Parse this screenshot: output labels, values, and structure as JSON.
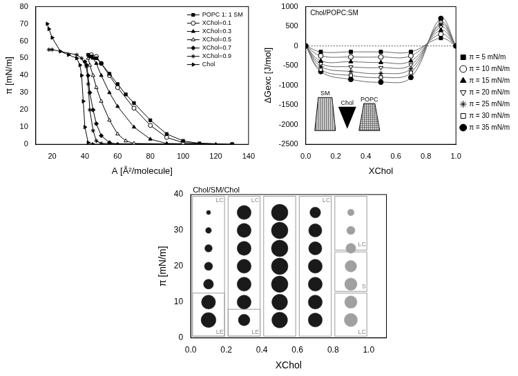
{
  "chart_data": [
    {
      "type": "line",
      "xlabel": "A [Å²/molecule]",
      "ylabel": "π [mN/m]",
      "xlim": [
        10,
        140
      ],
      "xticks": [
        20,
        40,
        60,
        80,
        100,
        120,
        140
      ],
      "ylim": [
        0,
        80
      ],
      "yticks": [
        0,
        10,
        20,
        30,
        40,
        50,
        60,
        70,
        80
      ],
      "legend": "upper right",
      "series": [
        {
          "name": "POPC 1: 1 SM",
          "color": "#000000",
          "marker": "square",
          "x": [
            130,
            110,
            100,
            90,
            80,
            70,
            65,
            60,
            55,
            50,
            47,
            44,
            42
          ],
          "values": [
            0,
            0.5,
            2,
            6,
            14,
            24,
            29,
            35,
            41,
            47,
            50,
            51,
            52
          ]
        },
        {
          "name": "XChol=0.1",
          "color": "#000000",
          "marker": "circle-open",
          "x": [
            130,
            100,
            90,
            80,
            70,
            60,
            55,
            50,
            47,
            44
          ],
          "values": [
            0,
            1,
            4,
            11,
            21,
            33,
            40,
            47,
            51,
            52
          ]
        },
        {
          "name": "XChol=0.3",
          "color": "#000000",
          "marker": "triangle",
          "x": [
            120,
            90,
            80,
            70,
            60,
            55,
            50,
            47,
            45,
            43
          ],
          "values": [
            0,
            0.5,
            3,
            10,
            22,
            30,
            40,
            47,
            50,
            51
          ]
        },
        {
          "name": "XChol=0.5",
          "color": "#000000",
          "marker": "triangle-open",
          "x": [
            110,
            70,
            65,
            60,
            55,
            50,
            47,
            45,
            43,
            42
          ],
          "values": [
            0,
            0.5,
            2,
            6,
            14,
            25,
            33,
            40,
            46,
            50
          ]
        },
        {
          "name": "XChol=0.7",
          "color": "#000000",
          "marker": "diamond",
          "x": [
            100,
            60,
            55,
            50,
            47,
            45,
            43,
            42,
            41,
            40
          ],
          "values": [
            0,
            0,
            1,
            5,
            12,
            20,
            30,
            40,
            46,
            48
          ]
        },
        {
          "name": "XChol=0.9",
          "color": "#000000",
          "marker": "star",
          "x": [
            100,
            50,
            47,
            45,
            43,
            42,
            41,
            38,
            35,
            20,
            18
          ],
          "values": [
            0,
            0.5,
            2,
            8,
            20,
            35,
            45,
            50,
            52,
            55,
            55
          ]
        },
        {
          "name": "Chol",
          "color": "#000000",
          "marker": "triangle-right",
          "x": [
            55,
            45,
            42,
            40,
            39,
            38,
            37,
            35,
            30,
            25,
            20,
            18,
            17
          ],
          "values": [
            0,
            0,
            1,
            10,
            25,
            40,
            46,
            50,
            52,
            54,
            62,
            67,
            70
          ]
        }
      ]
    },
    {
      "type": "line",
      "xlabel": "XChol",
      "ylabel": "ΔGexc [J/mol]",
      "xlim": [
        0,
        1
      ],
      "xticks": [
        {
          "value": 0,
          "label": "0.0"
        },
        0.2,
        0.4,
        0.6,
        0.8,
        {
          "value": 1,
          "label": "1.0"
        }
      ],
      "ylim": [
        -2500,
        1000
      ],
      "yticks": [
        -2500,
        -2000,
        -1500,
        -1000,
        -500,
        0,
        500,
        1000
      ],
      "legend": "right",
      "annotations": [
        {
          "text": "Chol/POPC:SM",
          "x": 0.03,
          "y": 830
        }
      ],
      "inset_labels": [
        "SM",
        "Chol",
        "POPC"
      ],
      "x": [
        0,
        0.1,
        0.3,
        0.5,
        0.7,
        0.9,
        1
      ],
      "series": [
        {
          "name": "π = 5 mN/m",
          "color": "#000000",
          "marker": "square",
          "values": [
            0,
            -150,
            -150,
            -150,
            -150,
            200,
            0
          ]
        },
        {
          "name": "π = 10 mN/m",
          "color": "#000000",
          "marker": "circle-open",
          "values": [
            0,
            -250,
            -280,
            -280,
            -250,
            300,
            0
          ]
        },
        {
          "name": "π = 15 mN/m",
          "color": "#000000",
          "marker": "triangle",
          "values": [
            0,
            -380,
            -400,
            -420,
            -380,
            400,
            0
          ]
        },
        {
          "name": "π = 20 mN/m",
          "color": "#000000",
          "marker": "triangle-down-open",
          "values": [
            0,
            -450,
            -530,
            -550,
            -480,
            480,
            0
          ]
        },
        {
          "name": "π = 25 mN/m",
          "color": "#000000",
          "marker": "star",
          "values": [
            0,
            -520,
            -650,
            -700,
            -580,
            550,
            0
          ]
        },
        {
          "name": "π = 30 mN/m",
          "color": "#000000",
          "marker": "square-open",
          "values": [
            0,
            -600,
            -750,
            -800,
            -680,
            600,
            0
          ]
        },
        {
          "name": "π = 35 mN/m",
          "color": "#000000",
          "marker": "circle",
          "values": [
            0,
            -650,
            -850,
            -920,
            -800,
            700,
            0
          ]
        }
      ]
    },
    {
      "type": "bubble",
      "title": "Chol/SM/Chol",
      "xlabel": "XChol",
      "ylabel": "π [mN/m]",
      "xlim": [
        0,
        1.1
      ],
      "xticks": [
        {
          "value": 0,
          "label": "0.0"
        },
        0.2,
        0.4,
        0.6,
        0.8,
        {
          "value": 1,
          "label": "1.0"
        }
      ],
      "ylim": [
        0,
        40
      ],
      "yticks": [
        0,
        10,
        20,
        30,
        40
      ],
      "x": [
        0.1,
        0.1,
        0.1,
        0.1,
        0.1,
        0.1,
        0.1,
        0.3,
        0.3,
        0.3,
        0.3,
        0.3,
        0.3,
        0.3,
        0.5,
        0.5,
        0.5,
        0.5,
        0.5,
        0.5,
        0.5,
        0.7,
        0.7,
        0.7,
        0.7,
        0.7,
        0.7,
        0.7,
        0.9,
        0.9,
        0.9,
        0.9,
        0.9,
        0.9,
        0.9
      ],
      "values": [
        5,
        10,
        15,
        20,
        25,
        30,
        35,
        5,
        10,
        15,
        20,
        25,
        30,
        35,
        5,
        10,
        15,
        20,
        25,
        30,
        35,
        5,
        10,
        15,
        20,
        25,
        30,
        35,
        5,
        10,
        15,
        20,
        25,
        30,
        35
      ],
      "sizes": [
        9,
        8.5,
        6,
        5,
        4.5,
        3.5,
        2.5,
        7,
        8.5,
        8.5,
        8.5,
        8.5,
        8.5,
        8.5,
        9.5,
        9.5,
        10,
        10,
        10,
        10,
        10,
        8.5,
        8.5,
        8.5,
        8.5,
        8,
        8,
        6.5,
        8,
        7.5,
        7.5,
        7,
        6,
        5,
        4
      ],
      "colors": [
        "#1a1a1a",
        "#1a1a1a",
        "#1a1a1a",
        "#1a1a1a",
        "#1a1a1a",
        "#1a1a1a",
        "#1a1a1a",
        "#1a1a1a",
        "#1a1a1a",
        "#1a1a1a",
        "#1a1a1a",
        "#1a1a1a",
        "#1a1a1a",
        "#1a1a1a",
        "#1a1a1a",
        "#1a1a1a",
        "#1a1a1a",
        "#1a1a1a",
        "#1a1a1a",
        "#1a1a1a",
        "#1a1a1a",
        "#1a1a1a",
        "#1a1a1a",
        "#1a1a1a",
        "#1a1a1a",
        "#1a1a1a",
        "#1a1a1a",
        "#1a1a1a",
        "#a0a0a0",
        "#a0a0a0",
        "#a0a0a0",
        "#a0a0a0",
        "#a0a0a0",
        "#a0a0a0",
        "#a0a0a0"
      ],
      "regions": [
        {
          "x": [
            0.01,
            0.19
          ],
          "y": [
            0.5,
            39.5
          ]
        },
        {
          "x": [
            0.01,
            0.19
          ],
          "y": [
            0.5,
            12.5
          ]
        },
        {
          "x": [
            0.21,
            0.39
          ],
          "y": [
            0.5,
            39.5
          ]
        },
        {
          "x": [
            0.21,
            0.39
          ],
          "y": [
            0.5,
            8
          ]
        },
        {
          "x": [
            0.41,
            0.59
          ],
          "y": [
            0.5,
            39.5
          ]
        },
        {
          "x": [
            0.61,
            0.79
          ],
          "y": [
            0.5,
            39.5
          ]
        },
        {
          "x": [
            0.81,
            0.99
          ],
          "y": [
            24.5,
            39.5
          ]
        },
        {
          "x": [
            0.81,
            0.99
          ],
          "y": [
            13,
            24
          ]
        },
        {
          "x": [
            0.81,
            0.99
          ],
          "y": [
            0.5,
            12.5
          ]
        }
      ],
      "annotations": [
        {
          "text": "LC",
          "x": 0.185,
          "y": 38.3
        },
        {
          "text": "LE",
          "x": 0.185,
          "y": 1.6
        },
        {
          "text": "LC",
          "x": 0.385,
          "y": 38.3
        },
        {
          "text": "LE",
          "x": 0.385,
          "y": 1.6
        },
        {
          "text": "LC",
          "x": 0.785,
          "y": 38.3
        },
        {
          "text": "LC",
          "x": 0.985,
          "y": 26
        },
        {
          "text": "S",
          "x": 0.985,
          "y": 14.3
        },
        {
          "text": "LC",
          "x": 0.985,
          "y": 1.6
        }
      ]
    }
  ]
}
